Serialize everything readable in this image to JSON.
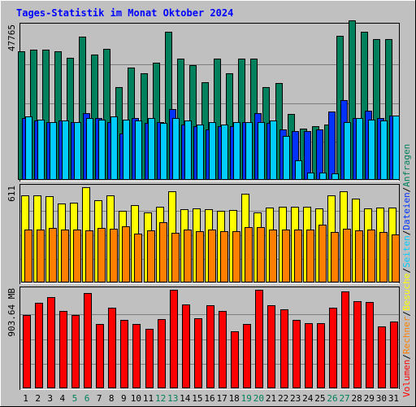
{
  "chart_data": {
    "title": "Tages-Statistik im Monat Oktober 2024",
    "type": "bar",
    "categories": [
      "1",
      "2",
      "3",
      "4",
      "5",
      "6",
      "7",
      "8",
      "9",
      "10",
      "11",
      "12",
      "13",
      "14",
      "15",
      "16",
      "17",
      "18",
      "19",
      "20",
      "21",
      "22",
      "23",
      "24",
      "25",
      "26",
      "27",
      "28",
      "29",
      "30",
      "31"
    ],
    "weekend_days": [
      "5",
      "6",
      "12",
      "13",
      "19",
      "20",
      "26",
      "27"
    ],
    "panels": [
      {
        "id": "requests",
        "max_label": "47765",
        "ymax": 47765,
        "series": [
          {
            "name": "Anfragen",
            "color": "#00805c",
            "values": [
              40000,
              40400,
              40400,
              40000,
              38000,
              44400,
              38800,
              40800,
              28800,
              34800,
              33200,
              36400,
              46000,
              37600,
              35600,
              30400,
              37600,
              33200,
              37600,
              37600,
              28800,
              30000,
              20400,
              16000,
              16800,
              17200,
              44800,
              49600,
              46000,
              43600,
              43600
            ]
          },
          {
            "name": "Dateien",
            "color": "#0033ff",
            "values": [
              19200,
              18400,
              18000,
              18400,
              18000,
              20800,
              19200,
              18000,
              14400,
              19200,
              17600,
              18000,
              22000,
              17200,
              16800,
              15600,
              16800,
              16800,
              18000,
              20800,
              17600,
              15600,
              15200,
              15200,
              15600,
              21200,
              24800,
              19200,
              21600,
              19200,
              20000
            ]
          },
          {
            "name": "Seiten",
            "color": "#00ccff",
            "values": [
              19600,
              18800,
              18000,
              18400,
              18000,
              19200,
              18800,
              19600,
              18800,
              18400,
              19200,
              17600,
              19200,
              18400,
              17200,
              18000,
              17200,
              18000,
              18000,
              18000,
              18400,
              13600,
              6000,
              2400,
              2400,
              2000,
              18000,
              19200,
              18800,
              18400,
              20000
            ]
          }
        ]
      },
      {
        "id": "visits",
        "max_label": "611",
        "ymax": 611,
        "series": [
          {
            "name": "Besuche",
            "color": "#ffff00",
            "values": [
              561,
              561,
              556,
              505,
              510,
              611,
              525,
              561,
              459,
              495,
              449,
              486,
              586,
              470,
              475,
              470,
              459,
              464,
              571,
              449,
              479,
              484,
              484,
              484,
              474,
              561,
              586,
              536,
              474,
              479,
              479
            ]
          },
          {
            "name": "Rechner",
            "color": "#ff8000",
            "values": [
              337,
              342,
              352,
              342,
              342,
              332,
              352,
              347,
              362,
              312,
              332,
              388,
              317,
              337,
              327,
              337,
              327,
              327,
              357,
              357,
              337,
              337,
              342,
              342,
              373,
              322,
              347,
              332,
              337,
              322,
              307
            ]
          }
        ]
      },
      {
        "id": "volume",
        "max_label": "903.64 MB",
        "ymax": 903.64,
        "series": [
          {
            "name": "Volumen",
            "color": "#ff0000",
            "values": [
              674,
              784,
              833,
              709,
              674,
              872,
              588,
              740,
              630,
              588,
              544,
              636,
              900,
              771,
              643,
              760,
              713,
              522,
              591,
              900,
              760,
              728,
              630,
              599,
              599,
              736,
              890,
              796,
              790,
              568,
              609
            ]
          }
        ]
      }
    ],
    "legend_right": [
      {
        "label": "Volumen",
        "color": "#ff0000"
      },
      {
        "label": "/",
        "color": "#000000"
      },
      {
        "label": "Rechner",
        "color": "#ff8000"
      },
      {
        "label": "/",
        "color": "#000000"
      },
      {
        "label": "Besuche",
        "color": "#ffff00"
      },
      {
        "label": "/",
        "color": "#000000"
      },
      {
        "label": "Seiten",
        "color": "#00ccff"
      },
      {
        "label": "/",
        "color": "#000000"
      },
      {
        "label": "Dateien",
        "color": "#0033ff"
      },
      {
        "label": "/",
        "color": "#000000"
      },
      {
        "label": "Anfragen",
        "color": "#00805c"
      }
    ],
    "colors": {
      "background": "#c0c0c0",
      "title": "#0000ff",
      "weekday_label": "#000000",
      "weekend_label": "#00805c"
    }
  }
}
